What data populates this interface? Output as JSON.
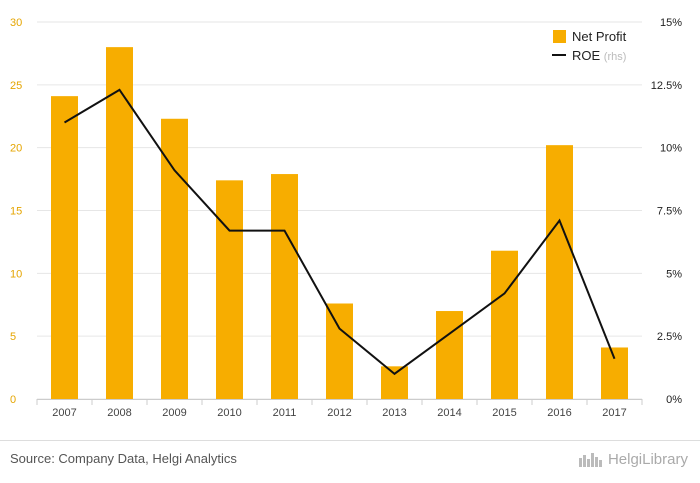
{
  "chart_data": {
    "type": "bar",
    "categories": [
      "2007",
      "2008",
      "2009",
      "2010",
      "2011",
      "2012",
      "2013",
      "2014",
      "2015",
      "2016",
      "2017"
    ],
    "series": [
      {
        "name": "Net Profit",
        "type": "bar",
        "axis": "left",
        "values": [
          24.1,
          28.0,
          22.3,
          17.4,
          17.9,
          7.6,
          2.6,
          7.0,
          11.8,
          20.2,
          4.1
        ]
      },
      {
        "name": "ROE",
        "type": "line",
        "axis": "right",
        "values": [
          11.0,
          12.3,
          9.1,
          6.7,
          6.7,
          2.8,
          1.0,
          2.6,
          4.2,
          7.1,
          1.6
        ]
      }
    ],
    "left_axis": {
      "ylim": [
        0,
        30
      ],
      "ticks": [
        "0",
        "5",
        "10",
        "15",
        "20",
        "25",
        "30"
      ]
    },
    "right_axis": {
      "ylim": [
        0,
        15
      ],
      "ticks": [
        "0%",
        "2.5%",
        "5%",
        "7.5%",
        "10%",
        "12.5%",
        "15%"
      ]
    },
    "grid": true,
    "legend": {
      "position": "top-right",
      "entries": [
        {
          "label": "Net Profit",
          "suffix": ""
        },
        {
          "label": "ROE",
          "suffix": "(rhs)"
        }
      ]
    }
  },
  "colors": {
    "bar": "#f7ad00",
    "line": "#111111",
    "grid": "#e6e6e6",
    "left_tick": "#e5a500"
  },
  "footer": {
    "source": "Source: Company Data, Helgi Analytics",
    "brand": "HelgiLibrary"
  }
}
